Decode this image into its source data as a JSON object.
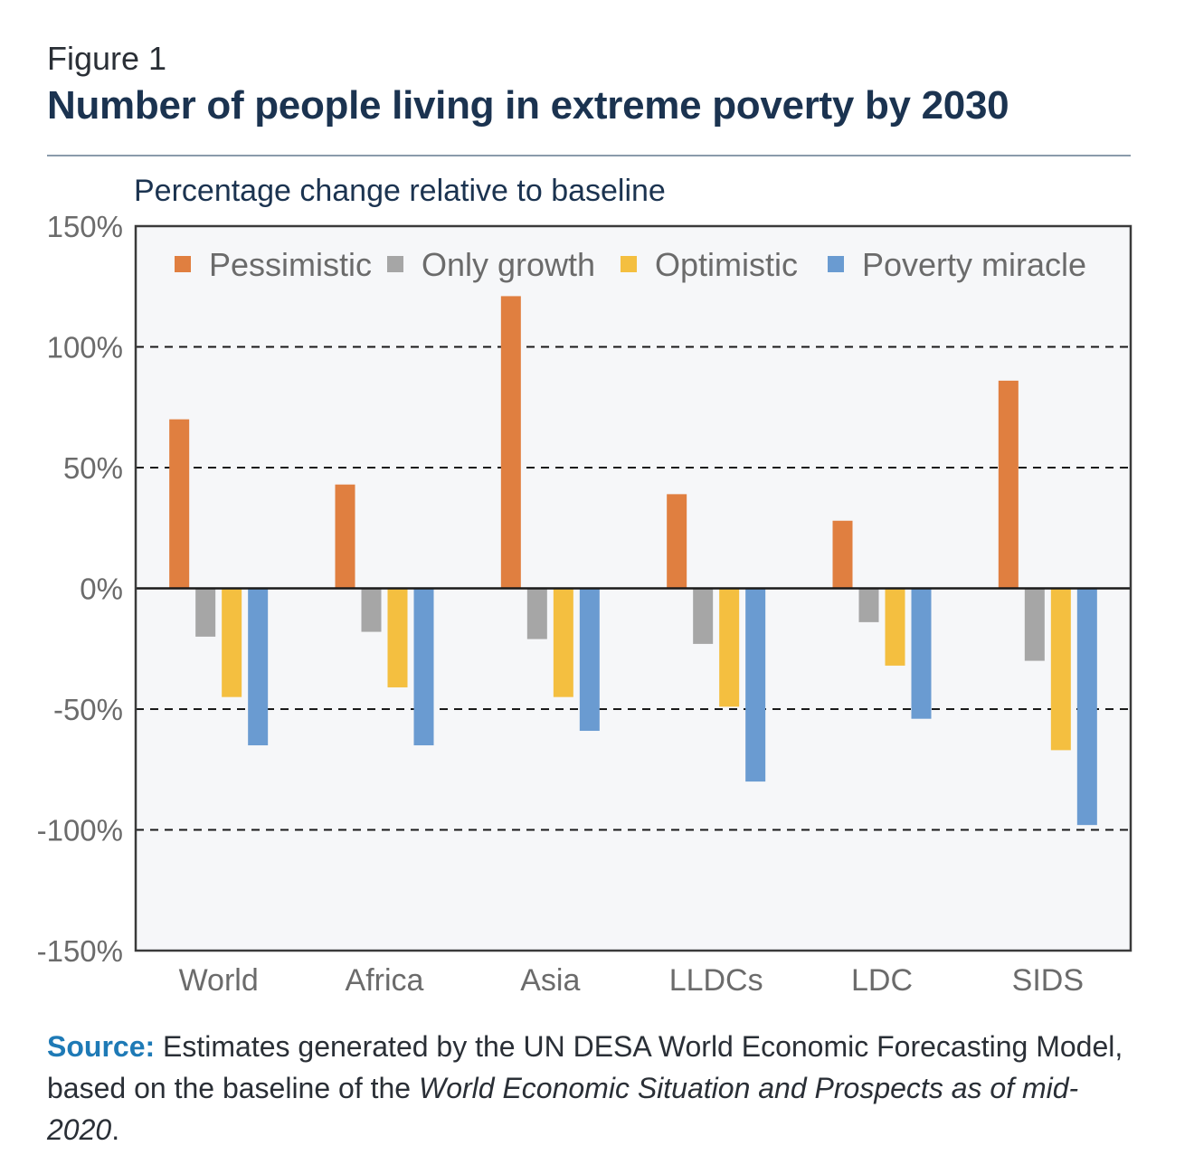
{
  "figure": {
    "label": "Figure 1",
    "title": "Number of people living in extreme poverty by 2030",
    "subtitle": "Percentage change relative to baseline"
  },
  "source": {
    "label": "Source:",
    "text_a": " Estimates generated by the UN DESA World Economic Forecasting Model, based on the baseline of the ",
    "text_italic": "World Economic Situation and Prospects as of mid-2020",
    "text_b": "."
  },
  "chart_data": {
    "type": "bar",
    "title": "Number of people living in extreme poverty by 2030",
    "ylabel": "Percentage change relative to baseline",
    "xlabel": "",
    "categories": [
      "World",
      "Africa",
      "Asia",
      "LLDCs",
      "LDC",
      "SIDS"
    ],
    "series": [
      {
        "name": "Pessimistic",
        "color": "#E07F40",
        "values": [
          70,
          43,
          121,
          39,
          28,
          86
        ]
      },
      {
        "name": "Only growth",
        "color": "#A6A6A6",
        "values": [
          -20,
          -18,
          -21,
          -23,
          -14,
          -30
        ]
      },
      {
        "name": "Optimistic",
        "color": "#F4BF40",
        "values": [
          -45,
          -41,
          -45,
          -49,
          -32,
          -67
        ]
      },
      {
        "name": "Poverty miracle",
        "color": "#6A9BD1",
        "values": [
          -65,
          -65,
          -59,
          -80,
          -54,
          -98
        ]
      }
    ],
    "ylim": [
      -150,
      150
    ],
    "yticks": [
      -150,
      -100,
      -50,
      0,
      50,
      100,
      150
    ],
    "ytick_labels": [
      "-150%",
      "-100%",
      "-50%",
      "0%",
      "50%",
      "100%",
      "150%"
    ],
    "grid": "dashed at ±50% and ±100%",
    "legend_position": "top"
  }
}
